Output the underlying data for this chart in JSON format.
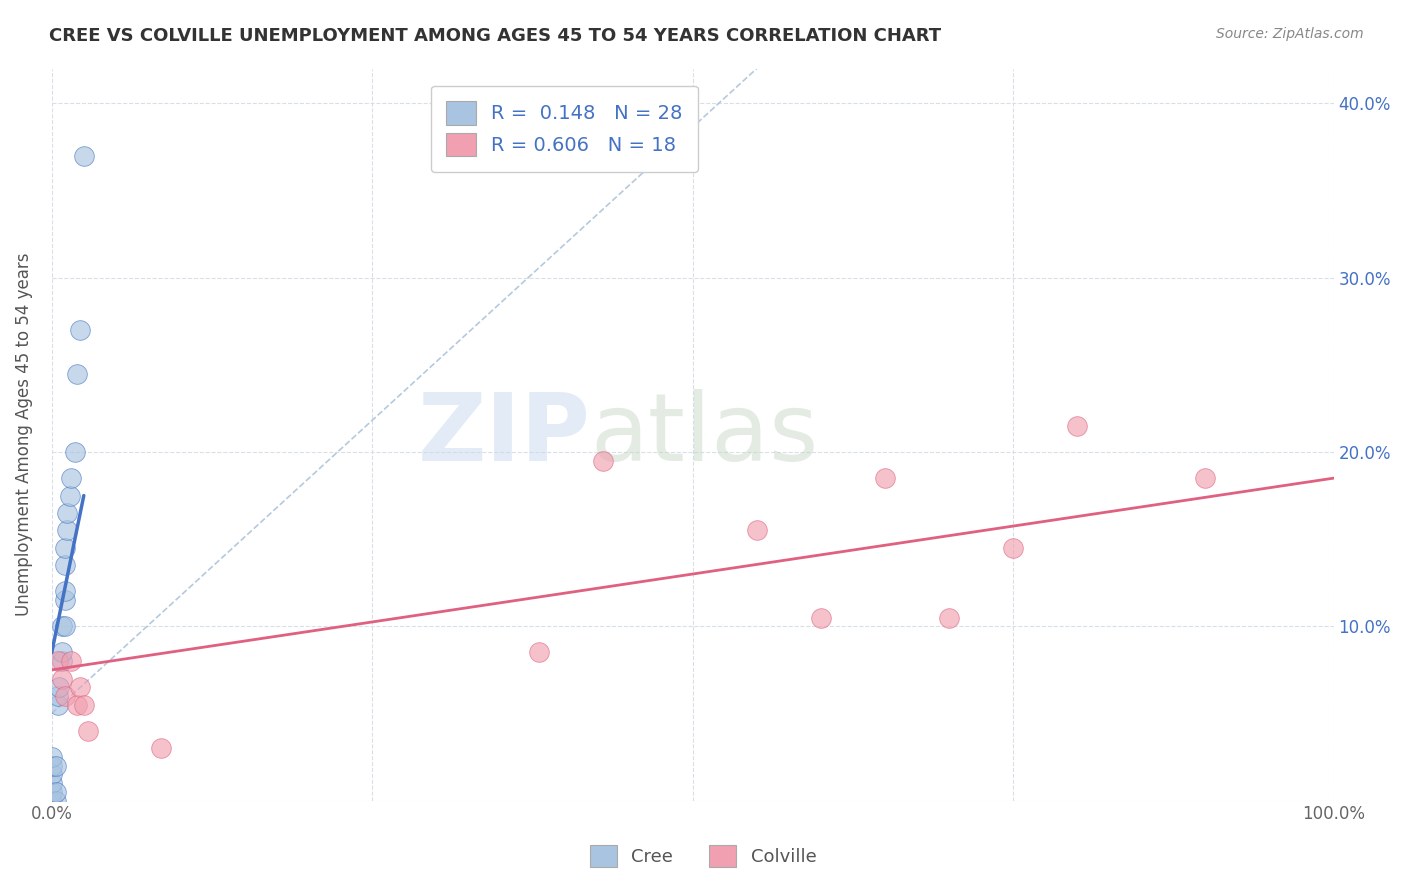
{
  "title": "CREE VS COLVILLE UNEMPLOYMENT AMONG AGES 45 TO 54 YEARS CORRELATION CHART",
  "source": "Source: ZipAtlas.com",
  "ylabel": "Unemployment Among Ages 45 to 54 years",
  "xlim": [
    0,
    1.0
  ],
  "ylim": [
    0,
    0.42
  ],
  "x_ticks": [
    0.0,
    0.25,
    0.5,
    0.75,
    1.0
  ],
  "y_ticks": [
    0.0,
    0.1,
    0.2,
    0.3,
    0.4
  ],
  "y_tick_labels_right": [
    "",
    "10.0%",
    "20.0%",
    "30.0%",
    "40.0%"
  ],
  "cree_R": 0.148,
  "cree_N": 28,
  "colville_R": 0.606,
  "colville_N": 18,
  "cree_color": "#a8c4e0",
  "colville_color": "#f0a0b0",
  "cree_line_color": "#4472c4",
  "colville_line_color": "#e06080",
  "ref_line_color": "#a8c0d8",
  "cree_points_x": [
    0.0,
    0.0,
    0.0,
    0.0,
    0.0,
    0.0,
    0.003,
    0.003,
    0.003,
    0.005,
    0.005,
    0.006,
    0.008,
    0.008,
    0.008,
    0.01,
    0.01,
    0.01,
    0.01,
    0.01,
    0.012,
    0.012,
    0.014,
    0.015,
    0.018,
    0.02,
    0.022,
    0.025
  ],
  "cree_points_y": [
    0.0,
    0.005,
    0.01,
    0.015,
    0.02,
    0.025,
    0.0,
    0.005,
    0.02,
    0.055,
    0.06,
    0.065,
    0.08,
    0.085,
    0.1,
    0.1,
    0.115,
    0.12,
    0.135,
    0.145,
    0.155,
    0.165,
    0.175,
    0.185,
    0.2,
    0.245,
    0.27,
    0.37
  ],
  "colville_points_x": [
    0.005,
    0.008,
    0.01,
    0.015,
    0.02,
    0.022,
    0.025,
    0.028,
    0.085,
    0.38,
    0.43,
    0.55,
    0.6,
    0.65,
    0.7,
    0.75,
    0.8,
    0.9
  ],
  "colville_points_y": [
    0.08,
    0.07,
    0.06,
    0.08,
    0.055,
    0.065,
    0.055,
    0.04,
    0.03,
    0.085,
    0.195,
    0.155,
    0.105,
    0.185,
    0.105,
    0.145,
    0.215,
    0.185
  ],
  "watermark_zip": "ZIP",
  "watermark_atlas": "atlas",
  "watermark_color_zip": "#c8d8ee",
  "watermark_color_atlas": "#c8d8c8",
  "background_color": "#ffffff",
  "grid_color": "#d8dfe8"
}
